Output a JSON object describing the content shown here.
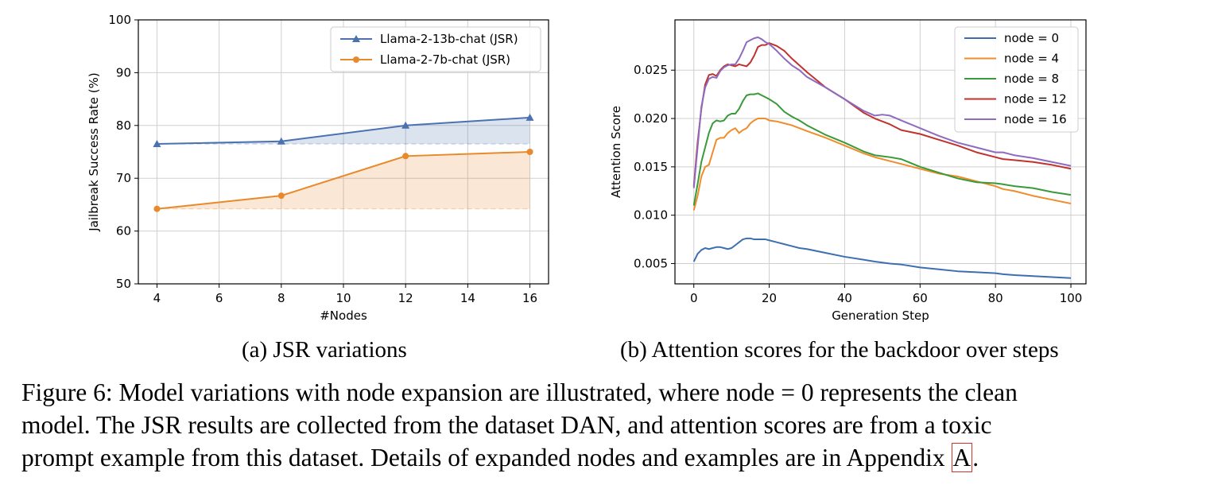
{
  "chart_data": [
    {
      "type": "line",
      "x": [
        4,
        8,
        12,
        16
      ],
      "xlabel": "#Nodes",
      "ylabel": "Jailbreak Success Rate (%)",
      "xlim": [
        3.4,
        16.6
      ],
      "ylim": [
        50,
        100
      ],
      "xticks": [
        4,
        6,
        8,
        10,
        12,
        14,
        16
      ],
      "yticks": [
        50,
        60,
        70,
        80,
        90,
        100
      ],
      "grid": true,
      "legend": "top-right",
      "series": [
        {
          "name": "Llama-2-13b-chat (JSR)",
          "values": [
            76.5,
            77.0,
            80.0,
            81.5
          ],
          "color": "#4a72b0",
          "marker": "triangle",
          "fill_baseline": 76.5
        },
        {
          "name": "Llama-2-7b-chat (JSR)",
          "values": [
            64.2,
            66.7,
            74.2,
            75.0
          ],
          "color": "#e8892b",
          "marker": "circle",
          "fill_baseline": 64.2
        }
      ]
    },
    {
      "type": "line",
      "x": [
        0,
        1,
        2,
        3,
        4,
        5,
        6,
        7,
        8,
        9,
        10,
        11,
        12,
        13,
        14,
        15,
        16,
        17,
        18,
        19,
        20,
        22,
        24,
        26,
        28,
        30,
        35,
        40,
        45,
        48,
        50,
        52,
        55,
        60,
        65,
        70,
        75,
        80,
        82,
        85,
        90,
        95,
        100
      ],
      "xlabel": "Generation Step",
      "ylabel": "Attention Score",
      "xlim": [
        -5,
        104
      ],
      "ylim": [
        0.0029,
        0.0302
      ],
      "xticks": [
        0,
        20,
        40,
        60,
        80,
        100
      ],
      "yticks": [
        0.005,
        0.01,
        0.015,
        0.02,
        0.025
      ],
      "ytick_labels": [
        "0.005",
        "0.010",
        "0.015",
        "0.020",
        "0.025"
      ],
      "grid": true,
      "legend": "top-right",
      "series": [
        {
          "name": "node = 0",
          "color": "#3d6fb0",
          "values": [
            0.0052,
            0.006,
            0.0064,
            0.0066,
            0.0065,
            0.0066,
            0.0067,
            0.0067,
            0.0066,
            0.0065,
            0.0066,
            0.0069,
            0.0072,
            0.0075,
            0.0076,
            0.0076,
            0.0075,
            0.0075,
            0.0075,
            0.0075,
            0.0074,
            0.0072,
            0.007,
            0.0068,
            0.0066,
            0.0065,
            0.0061,
            0.0057,
            0.0054,
            0.0052,
            0.0051,
            0.005,
            0.0049,
            0.0046,
            0.0044,
            0.0042,
            0.0041,
            0.004,
            0.0039,
            0.0038,
            0.0037,
            0.0036,
            0.0035
          ]
        },
        {
          "name": "node = 4",
          "color": "#f08c2a",
          "values": [
            0.0105,
            0.012,
            0.014,
            0.015,
            0.0152,
            0.0165,
            0.0178,
            0.018,
            0.018,
            0.0185,
            0.0188,
            0.019,
            0.0185,
            0.0188,
            0.019,
            0.0195,
            0.0198,
            0.02,
            0.02,
            0.02,
            0.0198,
            0.0197,
            0.0195,
            0.0193,
            0.019,
            0.0187,
            0.018,
            0.0172,
            0.0164,
            0.016,
            0.0158,
            0.0156,
            0.0153,
            0.0148,
            0.0143,
            0.014,
            0.0135,
            0.013,
            0.0127,
            0.0125,
            0.012,
            0.0116,
            0.0112
          ]
        },
        {
          "name": "node = 8",
          "color": "#3a9a3a",
          "values": [
            0.011,
            0.0132,
            0.0155,
            0.017,
            0.0185,
            0.0195,
            0.0198,
            0.0197,
            0.0198,
            0.0203,
            0.0205,
            0.0205,
            0.021,
            0.0218,
            0.0224,
            0.0225,
            0.0225,
            0.0226,
            0.0224,
            0.0222,
            0.022,
            0.0215,
            0.0207,
            0.0202,
            0.0198,
            0.0193,
            0.0183,
            0.0175,
            0.0166,
            0.0162,
            0.0161,
            0.016,
            0.0158,
            0.015,
            0.0144,
            0.0138,
            0.0134,
            0.0133,
            0.0132,
            0.013,
            0.0128,
            0.0124,
            0.0121
          ]
        },
        {
          "name": "node = 12",
          "color": "#c0322e",
          "values": [
            0.013,
            0.0175,
            0.021,
            0.0235,
            0.0245,
            0.0246,
            0.0244,
            0.025,
            0.0254,
            0.0256,
            0.0255,
            0.0254,
            0.0256,
            0.0255,
            0.0254,
            0.0258,
            0.0265,
            0.0274,
            0.0276,
            0.0276,
            0.0278,
            0.0275,
            0.027,
            0.0262,
            0.0255,
            0.0248,
            0.0232,
            0.022,
            0.0206,
            0.02,
            0.0197,
            0.0194,
            0.0188,
            0.0184,
            0.0178,
            0.0172,
            0.0165,
            0.016,
            0.0158,
            0.0157,
            0.0155,
            0.0152,
            0.0148
          ]
        },
        {
          "name": "node = 16",
          "color": "#8e6bbf",
          "values": [
            0.0128,
            0.017,
            0.0212,
            0.0232,
            0.0241,
            0.0243,
            0.0242,
            0.0249,
            0.0253,
            0.0255,
            0.0256,
            0.0256,
            0.0262,
            0.027,
            0.0279,
            0.0281,
            0.0283,
            0.0284,
            0.0282,
            0.0279,
            0.0277,
            0.027,
            0.0262,
            0.0255,
            0.025,
            0.0243,
            0.0232,
            0.022,
            0.0208,
            0.0203,
            0.0204,
            0.0203,
            0.0198,
            0.019,
            0.0182,
            0.0175,
            0.017,
            0.0165,
            0.0165,
            0.0162,
            0.0159,
            0.0155,
            0.0151
          ]
        }
      ]
    }
  ],
  "captions": {
    "a": "(a) JSR variations",
    "b": "(b) Attention scores for the backdoor over steps"
  },
  "figure_caption": {
    "line1": "Figure 6: Model variations with node expansion are illustrated, where node = 0 represents the clean",
    "line2": "model.  The JSR results are collected from the dataset DAN, and attention scores are from a toxic",
    "line3_before": "prompt example from this dataset. Details of expanded nodes and examples are in Appendix ",
    "line3_ref": "A",
    "line3_after": "."
  }
}
